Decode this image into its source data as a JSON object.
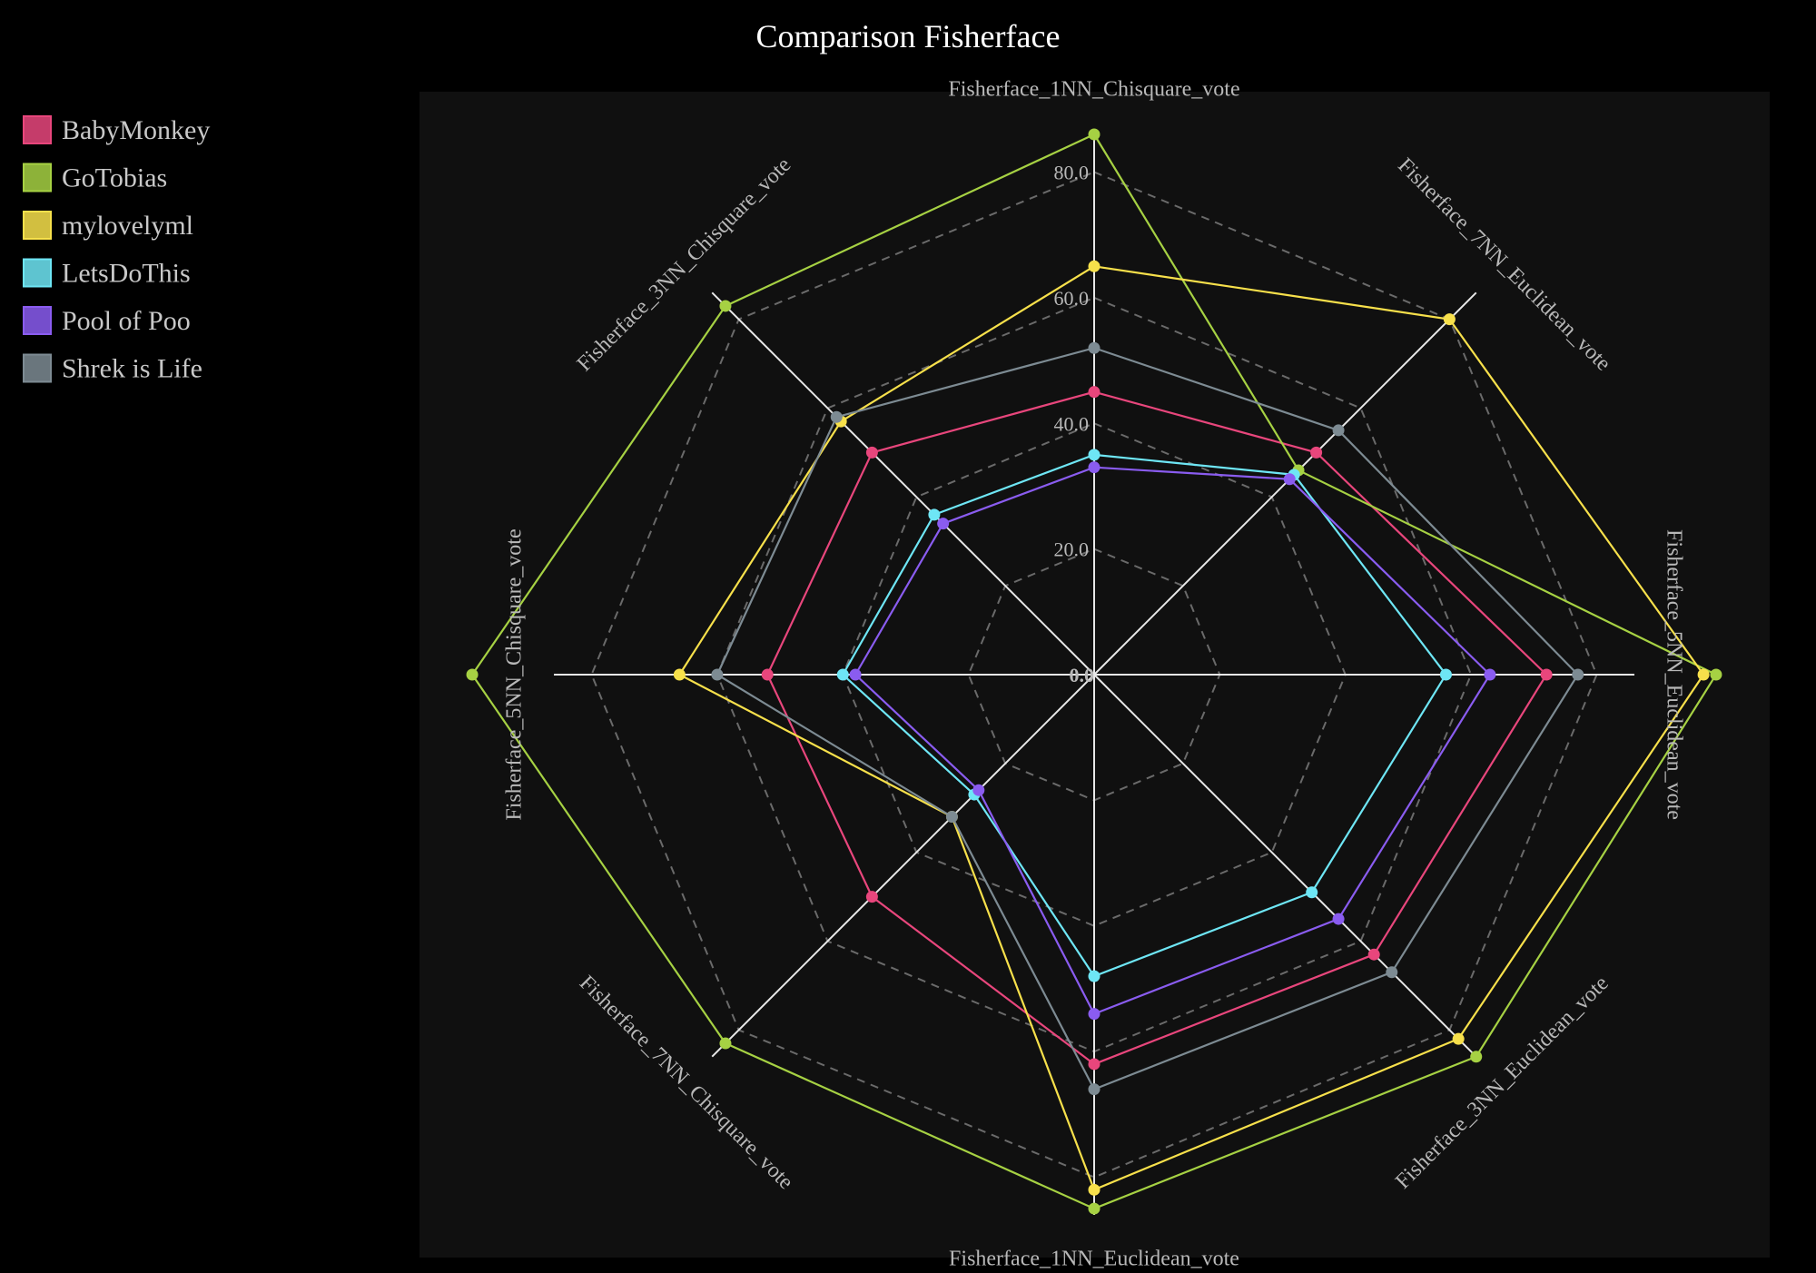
{
  "chart_data": {
    "type": "radar",
    "title": "Comparison Fisherface",
    "axes": [
      "Fisherface_1NN_Chisquare_vote",
      "Fisherface_7NN_Euclidean_vote",
      "Fisherface_5NN_Euclidean_vote",
      "Fisherface_3NN_Euclidean_vote",
      "Fisherface_1NN_Euclidean_vote",
      "Fisherface_7NN_Chisquare_vote",
      "Fisherface_5NN_Chisquare_vote",
      "Fisherface_3NN_Chisquare_vote"
    ],
    "ticks": [
      "0.0",
      "20.0",
      "40.0",
      "60.0",
      "80.0"
    ],
    "tick_values": [
      0,
      20,
      40,
      60,
      80
    ],
    "rmax": 86,
    "grid": true,
    "legend_position": "top-left",
    "series": [
      {
        "name": "BabyMonkey",
        "color": "#e8467c",
        "values": [
          45,
          50,
          72,
          63,
          62,
          50,
          52,
          50
        ]
      },
      {
        "name": "GoTobias",
        "color": "#a6d143",
        "values": [
          86,
          46,
          99,
          86,
          85,
          83,
          99,
          83
        ]
      },
      {
        "name": "mylovelyml",
        "color": "#f7e04b",
        "values": [
          65,
          80,
          97,
          82,
          82,
          32,
          66,
          57
        ]
      },
      {
        "name": "LetsDoThis",
        "color": "#6ee6f5",
        "values": [
          35,
          45,
          56,
          49,
          48,
          27,
          40,
          36
        ]
      },
      {
        "name": "Pool of Poo",
        "color": "#8a5cf0",
        "values": [
          33,
          44,
          63,
          55,
          54,
          26,
          38,
          34
        ]
      },
      {
        "name": "Shrek is Life",
        "color": "#7d8b93",
        "values": [
          52,
          55,
          77,
          67,
          66,
          32,
          60,
          58
        ]
      }
    ]
  }
}
